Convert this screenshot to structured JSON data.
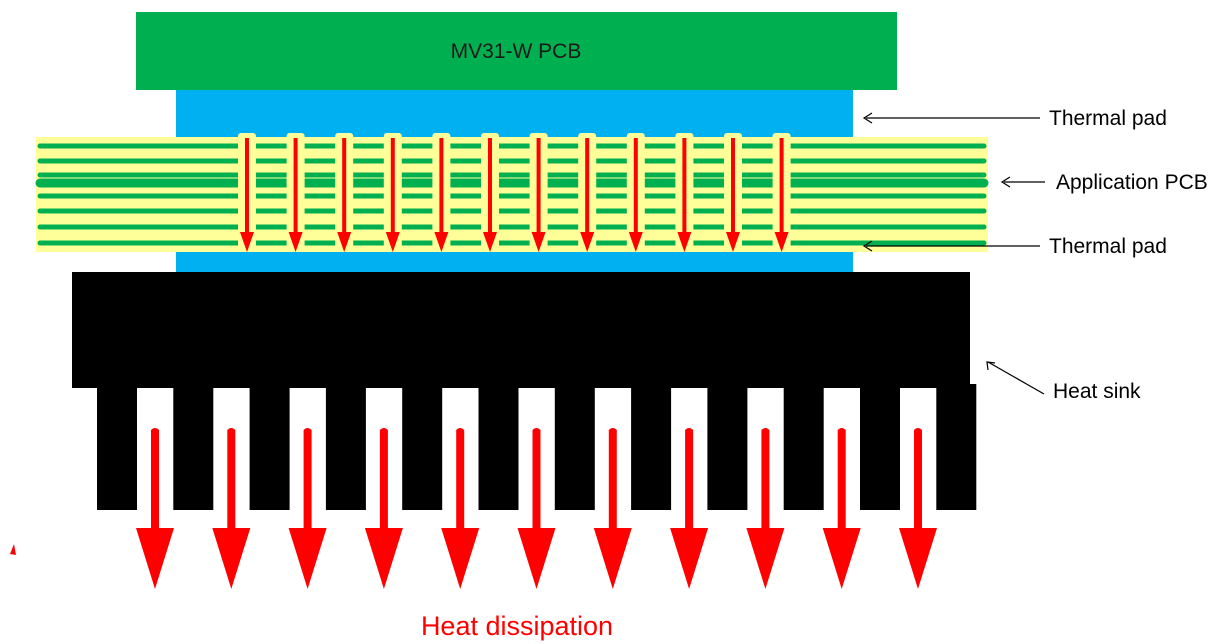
{
  "labels": {
    "module_pcb": "MV31-W PCB",
    "thermal_pad_top": "Thermal pad",
    "application_pcb": "Application PCB",
    "thermal_pad_bottom": "Thermal pad",
    "heat_sink": "Heat sink",
    "heat_dissipation": "Heat dissipation"
  },
  "colors": {
    "module_pcb": "#00b050",
    "thermal_pad": "#00b0f0",
    "application_pcb_base": "#ffff99",
    "application_pcb_traces": "#00b050",
    "heat_sink": "#000000",
    "arrow": "#ff0000",
    "heat_dissipation_text": "#ff0000"
  },
  "structure": {
    "via_arrow_count": 12,
    "heat_sink_fin_count": 12,
    "dissipation_arrow_count": 11
  }
}
